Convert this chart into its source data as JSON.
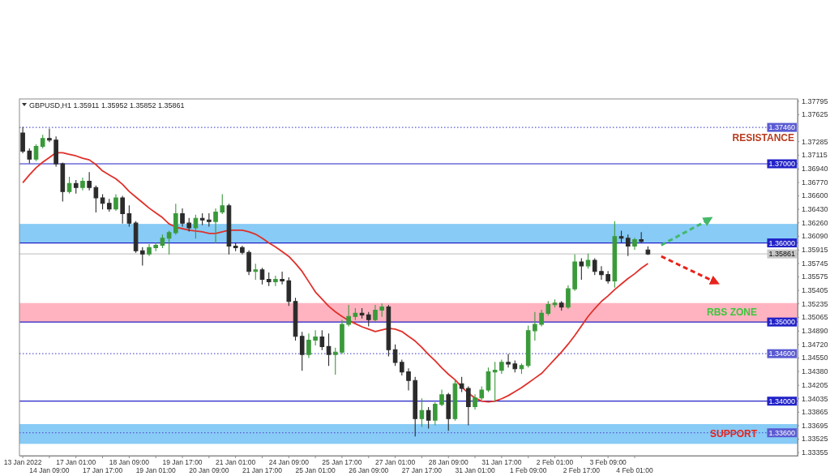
{
  "chart_data": {
    "type": "candlestick",
    "title": "GBPUSD,H1 1.35911 1.35952 1.35852 1.35861",
    "categories": [
      "13 Jan 2022",
      null,
      null,
      null,
      "14 Jan 09:00",
      null,
      null,
      null,
      "17 Jan 01:00",
      null,
      null,
      null,
      "17 Jan 17:00",
      null,
      null,
      null,
      "18 Jan 09:00",
      null,
      null,
      null,
      "19 Jan 01:00",
      null,
      null,
      null,
      "19 Jan 17:00",
      null,
      null,
      null,
      "20 Jan 09:00",
      null,
      null,
      null,
      "21 Jan 01:00",
      null,
      null,
      null,
      "21 Jan 17:00",
      null,
      null,
      null,
      "24 Jan 09:00",
      null,
      null,
      null,
      "25 Jan 01:00",
      null,
      null,
      null,
      "25 Jan 17:00",
      null,
      null,
      null,
      "26 Jan 09:00",
      null,
      null,
      null,
      "27 Jan 01:00",
      null,
      null,
      null,
      "27 Jan 17:00",
      null,
      null,
      null,
      "28 Jan 09:00",
      null,
      null,
      null,
      "31 Jan 01:00",
      null,
      null,
      null,
      "31 Jan 17:00",
      null,
      null,
      null,
      "1 Feb 09:00",
      null,
      null,
      null,
      "2 Feb 01:00",
      null,
      null,
      null,
      "2 Feb 17:00",
      null,
      null,
      null,
      "3 Feb 09:00",
      null,
      null,
      null,
      "4 Feb 01:00",
      null,
      null,
      null,
      null,
      null,
      null,
      null,
      null,
      null,
      null,
      null,
      null,
      null,
      null,
      null,
      null,
      null,
      null,
      null,
      null,
      null,
      null,
      null,
      null
    ],
    "ohlc": [
      [
        1.3739,
        1.3746,
        1.3714,
        1.3716
      ],
      [
        1.3716,
        1.3719,
        1.3701,
        1.3706
      ],
      [
        1.3706,
        1.3724,
        1.3704,
        1.3722
      ],
      [
        1.3722,
        1.3736,
        1.372,
        1.3732
      ],
      [
        1.3732,
        1.3744,
        1.3728,
        1.373
      ],
      [
        1.373,
        1.3734,
        1.3697,
        1.37
      ],
      [
        1.37,
        1.3701,
        1.3653,
        1.3665
      ],
      [
        1.3665,
        1.3683,
        1.3663,
        1.3675
      ],
      [
        1.3675,
        1.3679,
        1.3663,
        1.367
      ],
      [
        1.367,
        1.3682,
        1.3667,
        1.3678
      ],
      [
        1.3678,
        1.3689,
        1.3667,
        1.367
      ],
      [
        1.367,
        1.3672,
        1.3639,
        1.3657
      ],
      [
        1.3657,
        1.3661,
        1.3643,
        1.365
      ],
      [
        1.365,
        1.3655,
        1.364,
        1.3643
      ],
      [
        1.3643,
        1.3661,
        1.3641,
        1.3657
      ],
      [
        1.3657,
        1.3659,
        1.3625,
        1.3637
      ],
      [
        1.3637,
        1.3647,
        1.3621,
        1.3625
      ],
      [
        1.3625,
        1.3627,
        1.3588,
        1.359
      ],
      [
        1.359,
        1.3594,
        1.3572,
        1.3586
      ],
      [
        1.3586,
        1.3598,
        1.3584,
        1.3594
      ],
      [
        1.3594,
        1.36,
        1.359,
        1.3597
      ],
      [
        1.3597,
        1.361,
        1.3594,
        1.3606
      ],
      [
        1.3606,
        1.3615,
        1.3586,
        1.3613
      ],
      [
        1.3613,
        1.3649,
        1.3611,
        1.3637
      ],
      [
        1.3637,
        1.3643,
        1.3621,
        1.3625
      ],
      [
        1.3625,
        1.3631,
        1.3615,
        1.3619
      ],
      [
        1.3619,
        1.3635,
        1.3606,
        1.3631
      ],
      [
        1.3631,
        1.3637,
        1.3623,
        1.3629
      ],
      [
        1.3629,
        1.3637,
        1.3621,
        1.3627
      ],
      [
        1.3627,
        1.3643,
        1.36,
        1.3639
      ],
      [
        1.3639,
        1.3661,
        1.3637,
        1.3647
      ],
      [
        1.3647,
        1.3649,
        1.3586,
        1.3596
      ],
      [
        1.3596,
        1.36,
        1.359,
        1.3594
      ],
      [
        1.3594,
        1.3596,
        1.3586,
        1.3588
      ],
      [
        1.3588,
        1.359,
        1.356,
        1.3564
      ],
      [
        1.3564,
        1.3573,
        1.3554,
        1.3566
      ],
      [
        1.3566,
        1.3568,
        1.3548,
        1.3554
      ],
      [
        1.3554,
        1.3562,
        1.3546,
        1.3551
      ],
      [
        1.3551,
        1.3558,
        1.3546,
        1.3554
      ],
      [
        1.3554,
        1.3563,
        1.3548,
        1.3552
      ],
      [
        1.3552,
        1.3556,
        1.3521,
        1.3526
      ],
      [
        1.3526,
        1.353,
        1.3477,
        1.3482
      ],
      [
        1.3482,
        1.3487,
        1.3439,
        1.3459
      ],
      [
        1.3459,
        1.3485,
        1.3455,
        1.3477
      ],
      [
        1.3477,
        1.3489,
        1.3471,
        1.3481
      ],
      [
        1.3481,
        1.3489,
        1.3465,
        1.3469
      ],
      [
        1.3469,
        1.3485,
        1.3445,
        1.3459
      ],
      [
        1.3459,
        1.3467,
        1.3434,
        1.3462
      ],
      [
        1.3462,
        1.3502,
        1.346,
        1.3497
      ],
      [
        1.3497,
        1.3521,
        1.3495,
        1.3507
      ],
      [
        1.3507,
        1.3517,
        1.3503,
        1.3511
      ],
      [
        1.3511,
        1.3517,
        1.3505,
        1.3509
      ],
      [
        1.3509,
        1.3512,
        1.3495,
        1.3503
      ],
      [
        1.3503,
        1.3521,
        1.3501,
        1.3515
      ],
      [
        1.3515,
        1.3523,
        1.3507,
        1.3519
      ],
      [
        1.3519,
        1.3521,
        1.3457,
        1.3465
      ],
      [
        1.3465,
        1.3471,
        1.3445,
        1.3449
      ],
      [
        1.3449,
        1.3452,
        1.3433,
        1.3437
      ],
      [
        1.3437,
        1.3441,
        1.3414,
        1.3426
      ],
      [
        1.3426,
        1.343,
        1.3356,
        1.3378
      ],
      [
        1.3378,
        1.3403,
        1.3368,
        1.3388
      ],
      [
        1.3388,
        1.3392,
        1.3366,
        1.3376
      ],
      [
        1.3376,
        1.3398,
        1.337,
        1.3396
      ],
      [
        1.3396,
        1.3414,
        1.3394,
        1.3408
      ],
      [
        1.3408,
        1.341,
        1.3363,
        1.3378
      ],
      [
        1.3378,
        1.3426,
        1.3376,
        1.3422
      ],
      [
        1.3422,
        1.343,
        1.3412,
        1.3416
      ],
      [
        1.3416,
        1.3418,
        1.337,
        1.3393
      ],
      [
        1.3393,
        1.3408,
        1.339,
        1.3404
      ],
      [
        1.3404,
        1.3418,
        1.3402,
        1.3414
      ],
      [
        1.3414,
        1.3442,
        1.3412,
        1.3437
      ],
      [
        1.3437,
        1.3449,
        1.34,
        1.3439
      ],
      [
        1.3439,
        1.3452,
        1.3435,
        1.3449
      ],
      [
        1.3449,
        1.3459,
        1.3443,
        1.3447
      ],
      [
        1.3447,
        1.3451,
        1.3437,
        1.3441
      ],
      [
        1.3441,
        1.3447,
        1.3435,
        1.3445
      ],
      [
        1.3445,
        1.3495,
        1.3443,
        1.3489
      ],
      [
        1.3489,
        1.3512,
        1.3477,
        1.3497
      ],
      [
        1.3497,
        1.3515,
        1.3495,
        1.3511
      ],
      [
        1.3511,
        1.3526,
        1.3509,
        1.3522
      ],
      [
        1.3522,
        1.3528,
        1.3519,
        1.3524
      ],
      [
        1.3524,
        1.3526,
        1.3515,
        1.3519
      ],
      [
        1.3519,
        1.3546,
        1.3517,
        1.3542
      ],
      [
        1.3542,
        1.3585,
        1.354,
        1.3576
      ],
      [
        1.3576,
        1.358,
        1.3554,
        1.3571
      ],
      [
        1.3571,
        1.3586,
        1.3568,
        1.3578
      ],
      [
        1.3578,
        1.358,
        1.356,
        1.3564
      ],
      [
        1.3564,
        1.357,
        1.3554,
        1.356
      ],
      [
        1.356,
        1.3564,
        1.3549,
        1.3552
      ],
      [
        1.3552,
        1.3627,
        1.3544,
        1.3608
      ],
      [
        1.3608,
        1.3615,
        1.36,
        1.3606
      ],
      [
        1.3606,
        1.361,
        1.3584,
        1.3596
      ],
      [
        1.3596,
        1.3606,
        1.3592,
        1.3604
      ],
      [
        1.3604,
        1.3613,
        1.36,
        1.3602
      ],
      [
        1.35911,
        1.35952,
        1.35852,
        1.35861
      ],
      null,
      null,
      null,
      null,
      null,
      null,
      null,
      null,
      null,
      null,
      null,
      null,
      null,
      null,
      null,
      null,
      null,
      null,
      null,
      null,
      null,
      null
    ],
    "colors": [
      "#2b2b2b",
      "#2b2b2b",
      "#3a9a3a",
      "#3a9a3a",
      "#2b2b2b",
      "#2b2b2b",
      "#2b2b2b",
      "#3a9a3a",
      "#2b2b2b",
      "#3a9a3a",
      "#2b2b2b",
      "#2b2b2b",
      "#2b2b2b",
      "#2b2b2b",
      "#3a9a3a",
      "#2b2b2b",
      "#2b2b2b",
      "#2b2b2b",
      "#2b2b2b",
      "#3a9a3a",
      "#3a9a3a",
      "#3a9a3a",
      "#3a9a3a",
      "#3a9a3a",
      "#2b2b2b",
      "#2b2b2b",
      "#3a9a3a",
      "#2b2b2b",
      "#2b2b2b",
      "#3a9a3a",
      "#3a9a3a",
      "#2b2b2b",
      "#2b2b2b",
      "#2b2b2b",
      "#2b2b2b",
      "#3a9a3a",
      "#2b2b2b",
      "#2b2b2b",
      "#3a9a3a",
      "#2b2b2b",
      "#2b2b2b",
      "#2b2b2b",
      "#2b2b2b",
      "#3a9a3a",
      "#3a9a3a",
      "#2b2b2b",
      "#2b2b2b",
      "#3a9a3a",
      "#3a9a3a",
      "#3a9a3a",
      "#3a9a3a",
      "#2b2b2b",
      "#2b2b2b",
      "#3a9a3a",
      "#3a9a3a",
      "#2b2b2b",
      "#2b2b2b",
      "#2b2b2b",
      "#2b2b2b",
      "#2b2b2b",
      "#3a9a3a",
      "#2b2b2b",
      "#3a9a3a",
      "#3a9a3a",
      "#2b2b2b",
      "#3a9a3a",
      "#2b2b2b",
      "#2b2b2b",
      "#3a9a3a",
      "#3a9a3a",
      "#3a9a3a",
      "#3a9a3a",
      "#3a9a3a",
      "#2b2b2b",
      "#2b2b2b",
      "#3a9a3a",
      "#3a9a3a",
      "#3a9a3a",
      "#3a9a3a",
      "#3a9a3a",
      "#3a9a3a",
      "#2b2b2b",
      "#3a9a3a",
      "#3a9a3a",
      "#2b2b2b",
      "#3a9a3a",
      "#2b2b2b",
      "#2b2b2b",
      "#2b2b2b",
      "#3a9a3a",
      "#2b2b2b",
      "#2b2b2b",
      "#3a9a3a",
      "#2b2b2b",
      "#2b2b2b",
      null,
      null,
      null,
      null,
      null,
      null,
      null,
      null,
      null,
      null,
      null,
      null,
      null,
      null,
      null,
      null,
      null,
      null,
      null,
      null,
      null,
      null
    ],
    "series": [
      {
        "type": "line",
        "color": "#e0302a",
        "values": [
          1.3676,
          1.3686,
          1.3695,
          1.3702,
          1.3708,
          1.3714,
          1.3714,
          1.3712,
          1.371,
          1.3707,
          1.3705,
          1.3699,
          1.3691,
          1.3686,
          1.3681,
          1.3674,
          1.3665,
          1.3658,
          1.3651,
          1.3644,
          1.3638,
          1.3632,
          1.3624,
          1.362,
          1.3618,
          1.3616,
          1.3615,
          1.3614,
          1.3612,
          1.3612,
          1.3614,
          1.3616,
          1.3616,
          1.3616,
          1.3614,
          1.3611,
          1.3606,
          1.36,
          1.3595,
          1.3589,
          1.3583,
          1.3574,
          1.3564,
          1.3551,
          1.3538,
          1.3529,
          1.352,
          1.3513,
          1.3507,
          1.3502,
          1.3498,
          1.3494,
          1.3491,
          1.3488,
          1.349,
          1.3492,
          1.3491,
          1.3488,
          1.3482,
          1.3476,
          1.3468,
          1.3459,
          1.3451,
          1.3442,
          1.3434,
          1.3427,
          1.3418,
          1.341,
          1.3404,
          1.34,
          1.3399,
          1.34,
          1.3403,
          1.3407,
          1.3412,
          1.3417,
          1.3423,
          1.3429,
          1.3435,
          1.3444,
          1.3453,
          1.3462,
          1.3472,
          1.3483,
          1.3495,
          1.3507,
          1.3517,
          1.3526,
          1.3533,
          1.3541,
          1.3548,
          1.3555,
          1.3561,
          1.3568,
          1.3574,
          null,
          null,
          null,
          null,
          null,
          null,
          null,
          null,
          null,
          null,
          null,
          null,
          null,
          null,
          null,
          null,
          null,
          null,
          null,
          null,
          null,
          null
        ]
      },
      {
        "type": "line",
        "color": "#45b86a",
        "line_style": "dashed",
        "values": [
          null,
          null,
          null,
          null,
          null,
          null,
          null,
          null,
          null,
          null,
          null,
          null,
          null,
          null,
          null,
          null,
          null,
          null,
          null,
          null,
          null,
          null,
          null,
          null,
          null,
          null,
          null,
          null,
          null,
          null,
          null,
          null,
          null,
          null,
          null,
          null,
          null,
          null,
          null,
          null,
          null,
          null,
          null,
          null,
          null,
          null,
          null,
          null,
          null,
          null,
          null,
          null,
          null,
          null,
          null,
          null,
          null,
          null,
          null,
          null,
          null,
          null,
          null,
          null,
          null,
          null,
          null,
          null,
          null,
          null,
          null,
          null,
          null,
          null,
          null,
          null,
          null,
          null,
          null,
          null,
          null,
          null,
          null,
          null,
          null,
          null,
          null,
          null,
          null,
          null,
          null,
          null,
          null,
          null,
          null,
          null,
          1.3597,
          1.3602,
          1.3606,
          1.3611,
          1.3615,
          1.362,
          1.3624,
          1.3629,
          null,
          null,
          null,
          null,
          null,
          null,
          null,
          null,
          null,
          null,
          null,
          null,
          null
        ]
      },
      {
        "type": "line",
        "color": "#e8231b",
        "line_style": "dashed",
        "values": [
          null,
          null,
          null,
          null,
          null,
          null,
          null,
          null,
          null,
          null,
          null,
          null,
          null,
          null,
          null,
          null,
          null,
          null,
          null,
          null,
          null,
          null,
          null,
          null,
          null,
          null,
          null,
          null,
          null,
          null,
          null,
          null,
          null,
          null,
          null,
          null,
          null,
          null,
          null,
          null,
          null,
          null,
          null,
          null,
          null,
          null,
          null,
          null,
          null,
          null,
          null,
          null,
          null,
          null,
          null,
          null,
          null,
          null,
          null,
          null,
          null,
          null,
          null,
          null,
          null,
          null,
          null,
          null,
          null,
          null,
          null,
          null,
          null,
          null,
          null,
          null,
          null,
          null,
          null,
          null,
          null,
          null,
          null,
          null,
          null,
          null,
          null,
          null,
          null,
          null,
          null,
          null,
          null,
          null,
          null,
          null,
          1.3583,
          1.3579,
          1.3575,
          1.3571,
          1.3567,
          1.3563,
          1.3559,
          1.3555,
          1.3551,
          null,
          null,
          null,
          null,
          null,
          null,
          null,
          null,
          null,
          null,
          null,
          null
        ]
      }
    ],
    "ylim": [
      1.3331,
      1.3782
    ],
    "yticks": [
      1.37795,
      1.37625,
      1.37285,
      1.37115,
      {
        "value": 1.3694,
        "label": "1.36940"
      },
      {
        "value": 1.3677,
        "label": "1.36770"
      },
      {
        "value": 1.366,
        "label": "1.36600"
      },
      {
        "value": 1.3643,
        "label": "1.36430"
      },
      {
        "value": 1.3626,
        "label": "1.36260"
      },
      {
        "value": 1.3609,
        "label": "1.36090"
      },
      1.35915,
      1.35745,
      1.35575,
      1.35405,
      1.35235,
      1.35065,
      {
        "value": 1.3489,
        "label": "1.34890"
      },
      {
        "value": 1.3472,
        "label": "1.34720"
      },
      {
        "value": 1.3455,
        "label": "1.34550"
      },
      {
        "value": 1.3438,
        "label": "1.34380"
      },
      1.34205,
      1.34035,
      1.33865,
      1.33695,
      1.33525,
      1.33355
    ],
    "ref_lines": [
      {
        "axis": "y",
        "value": 1.3746,
        "label": "1.37460",
        "color": "#5a5ad2",
        "line_style": "dotted"
      },
      {
        "axis": "y",
        "value": 1.37,
        "label": "1.37000",
        "color": "#2222c8"
      },
      {
        "axis": "y",
        "value": 1.36,
        "label": "1.36000",
        "color": "#2222c8"
      },
      {
        "axis": "y",
        "value": 1.35861,
        "label": "1.35861",
        "color": "#c8c8c8"
      },
      {
        "axis": "y",
        "value": 1.35,
        "label": "1.35000",
        "color": "#2222c8"
      },
      {
        "axis": "y",
        "value": 1.346,
        "label": "1.34600",
        "color": "#5a5ad2",
        "line_style": "dotted"
      },
      {
        "axis": "y",
        "value": 1.34,
        "label": "1.34000",
        "color": "#2222c8"
      },
      {
        "axis": "y",
        "value": 1.336,
        "label": "1.33600",
        "color": "#5a5ad2",
        "line_style": "dotted"
      }
    ],
    "bands": [
      {
        "axis": "y",
        "from": 1.36,
        "to": 1.3624,
        "color": "#87cbf6"
      },
      {
        "axis": "y",
        "from": 1.35,
        "to": 1.3524,
        "color": "#ffb3c0",
        "label": "RBS ZONE"
      },
      {
        "axis": "y",
        "from": 1.3346,
        "to": 1.3371,
        "color": "#87cbf6",
        "label": "SUPPORT"
      }
    ],
    "annotations": [
      "RESISTANCE"
    ]
  }
}
